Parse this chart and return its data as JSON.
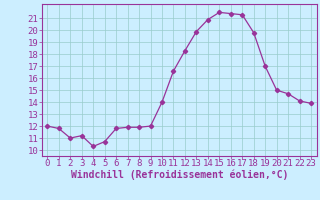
{
  "x": [
    0,
    1,
    2,
    3,
    4,
    5,
    6,
    7,
    8,
    9,
    10,
    11,
    12,
    13,
    14,
    15,
    16,
    17,
    18,
    19,
    20,
    21,
    22,
    23
  ],
  "y": [
    12,
    11.8,
    11,
    11.2,
    10.3,
    10.7,
    11.8,
    11.9,
    11.9,
    12,
    14,
    16.6,
    18.3,
    19.9,
    20.9,
    21.5,
    21.4,
    21.3,
    19.8,
    17,
    15,
    14.7,
    14.1,
    13.9
  ],
  "line_color": "#993399",
  "marker": "D",
  "marker_size": 2.2,
  "bg_color": "#cceeff",
  "grid_color": "#99cccc",
  "tick_color": "#993399",
  "xlabel": "Windchill (Refroidissement éolien,°C)",
  "xlabel_color": "#993399",
  "ylim": [
    9.5,
    22.2
  ],
  "xlim": [
    -0.5,
    23.5
  ],
  "yticks": [
    10,
    11,
    12,
    13,
    14,
    15,
    16,
    17,
    18,
    19,
    20,
    21
  ],
  "xticks": [
    0,
    1,
    2,
    3,
    4,
    5,
    6,
    7,
    8,
    9,
    10,
    11,
    12,
    13,
    14,
    15,
    16,
    17,
    18,
    19,
    20,
    21,
    22,
    23
  ],
  "font_size": 6.5,
  "xlabel_fontsize": 7
}
